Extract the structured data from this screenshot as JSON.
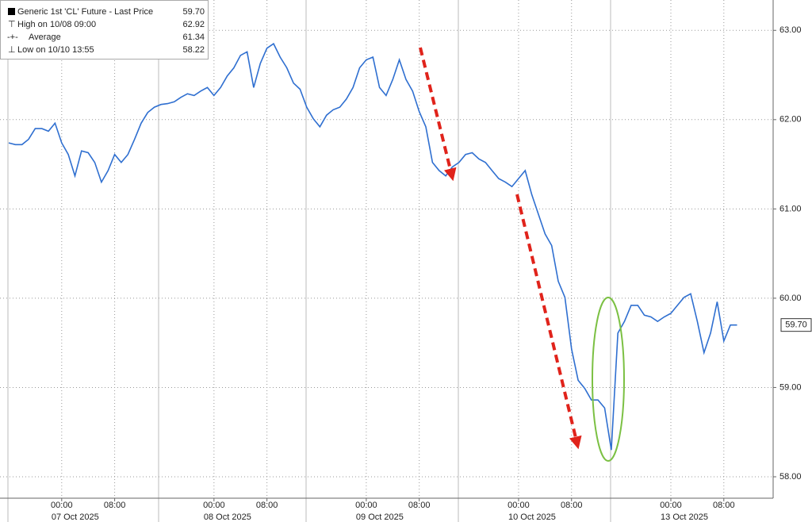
{
  "chart_data": {
    "type": "line",
    "categories": [
      "2025-10-06 15:00",
      "2025-10-06 16:00",
      "2025-10-06 18:00",
      "2025-10-06 19:00",
      "2025-10-06 20:00",
      "2025-10-06 21:00",
      "2025-10-06 22:00",
      "2025-10-06 23:00",
      "2025-10-07 00:00",
      "2025-10-07 01:00",
      "2025-10-07 02:00",
      "2025-10-07 03:00",
      "2025-10-07 04:00",
      "2025-10-07 05:00",
      "2025-10-07 06:00",
      "2025-10-07 07:00",
      "2025-10-07 08:00",
      "2025-10-07 09:00",
      "2025-10-07 10:00",
      "2025-10-07 11:00",
      "2025-10-07 12:00",
      "2025-10-07 13:00",
      "2025-10-07 14:00",
      "2025-10-07 15:00",
      "2025-10-07 16:00",
      "2025-10-07 18:00",
      "2025-10-07 19:00",
      "2025-10-07 20:00",
      "2025-10-07 21:00",
      "2025-10-07 22:00",
      "2025-10-07 23:00",
      "2025-10-08 00:00",
      "2025-10-08 01:00",
      "2025-10-08 02:00",
      "2025-10-08 03:00",
      "2025-10-08 04:00",
      "2025-10-08 05:00",
      "2025-10-08 06:00",
      "2025-10-08 07:00",
      "2025-10-08 08:00",
      "2025-10-08 09:00",
      "2025-10-08 10:00",
      "2025-10-08 11:00",
      "2025-10-08 12:00",
      "2025-10-08 13:00",
      "2025-10-08 14:00",
      "2025-10-08 15:00",
      "2025-10-08 16:00",
      "2025-10-08 18:00",
      "2025-10-08 19:00",
      "2025-10-08 20:00",
      "2025-10-08 21:00",
      "2025-10-08 22:00",
      "2025-10-08 23:00",
      "2025-10-09 00:00",
      "2025-10-09 01:00",
      "2025-10-09 02:00",
      "2025-10-09 03:00",
      "2025-10-09 04:00",
      "2025-10-09 05:00",
      "2025-10-09 06:00",
      "2025-10-09 07:00",
      "2025-10-09 08:00",
      "2025-10-09 09:00",
      "2025-10-09 10:00",
      "2025-10-09 11:00",
      "2025-10-09 12:00",
      "2025-10-09 13:00",
      "2025-10-09 14:00",
      "2025-10-09 15:00",
      "2025-10-09 16:00",
      "2025-10-09 18:00",
      "2025-10-09 19:00",
      "2025-10-09 20:00",
      "2025-10-09 21:00",
      "2025-10-09 22:00",
      "2025-10-09 23:00",
      "2025-10-10 00:00",
      "2025-10-10 01:00",
      "2025-10-10 02:00",
      "2025-10-10 03:00",
      "2025-10-10 04:00",
      "2025-10-10 05:00",
      "2025-10-10 06:00",
      "2025-10-10 07:00",
      "2025-10-10 08:00",
      "2025-10-10 09:00",
      "2025-10-10 10:00",
      "2025-10-10 11:00",
      "2025-10-10 12:00",
      "2025-10-10 13:00",
      "2025-10-10 14:00",
      "2025-10-10 15:00",
      "2025-10-10 16:00",
      "2025-10-12 18:00",
      "2025-10-12 19:00",
      "2025-10-12 20:00",
      "2025-10-12 21:00",
      "2025-10-12 22:00",
      "2025-10-12 23:00",
      "2025-10-13 00:00",
      "2025-10-13 01:00",
      "2025-10-13 02:00",
      "2025-10-13 03:00",
      "2025-10-13 04:00",
      "2025-10-13 05:00",
      "2025-10-13 06:00",
      "2025-10-13 07:00",
      "2025-10-13 08:00",
      "2025-10-13 09:00",
      "2025-10-13 10:00"
    ],
    "series": [
      {
        "name": "Generic 1st 'CL' Future - Last Price",
        "color": "#2f6fd0",
        "values": [
          61.74,
          61.72,
          61.72,
          61.78,
          61.9,
          61.9,
          61.87,
          61.96,
          61.74,
          61.61,
          61.37,
          61.65,
          61.63,
          61.52,
          61.3,
          61.43,
          61.61,
          61.52,
          61.61,
          61.78,
          61.96,
          62.08,
          62.14,
          62.17,
          62.18,
          62.2,
          62.25,
          62.29,
          62.27,
          62.32,
          62.36,
          62.27,
          62.36,
          62.49,
          62.58,
          62.72,
          62.76,
          62.36,
          62.63,
          62.8,
          62.85,
          62.7,
          62.58,
          62.41,
          62.34,
          62.14,
          62.01,
          61.92,
          62.05,
          62.11,
          62.14,
          62.23,
          62.36,
          62.58,
          62.67,
          62.7,
          62.36,
          62.27,
          62.45,
          62.67,
          62.45,
          62.32,
          62.09,
          61.92,
          61.52,
          61.43,
          61.37,
          61.47,
          61.52,
          61.61,
          61.63,
          61.56,
          61.52,
          61.43,
          61.34,
          61.3,
          61.25,
          61.34,
          61.43,
          61.16,
          60.94,
          60.72,
          60.59,
          60.19,
          60.01,
          59.43,
          59.08,
          58.99,
          58.86,
          58.86,
          58.77,
          58.3,
          59.61,
          59.74,
          59.92,
          59.92,
          59.81,
          59.79,
          59.74,
          59.79,
          59.83,
          59.92,
          60.01,
          60.05,
          59.74,
          59.39,
          59.61,
          59.96,
          59.52,
          59.7,
          59.7
        ],
        "last": {
          "value": 59.7,
          "label": "59.70"
        }
      }
    ],
    "legend_stats": [
      {
        "label": "High on 10/08 09:00",
        "value": "62.92"
      },
      {
        "label": "Average",
        "value": "61.34"
      },
      {
        "label": "Low on 10/10 13:55",
        "value": "58.22"
      }
    ],
    "ylim": [
      57.76,
      63.34
    ],
    "yticks": [
      {
        "value": 58,
        "label": "58.00"
      },
      {
        "value": 59,
        "label": "59.00"
      },
      {
        "value": 60,
        "label": "60.00"
      },
      {
        "value": 61,
        "label": "61.00"
      },
      {
        "value": 62,
        "label": "62.00"
      },
      {
        "value": 63,
        "label": "63.00"
      }
    ],
    "xticks": [
      {
        "value": "2025-10-07 00:00",
        "label": "00:00"
      },
      {
        "value": "2025-10-07 08:00",
        "label": "08:00"
      },
      {
        "value": "2025-10-08 00:00",
        "label": "00:00"
      },
      {
        "value": "2025-10-08 08:00",
        "label": "08:00"
      },
      {
        "value": "2025-10-09 00:00",
        "label": "00:00"
      },
      {
        "value": "2025-10-09 08:00",
        "label": "08:00"
      },
      {
        "value": "2025-10-10 00:00",
        "label": "00:00"
      },
      {
        "value": "2025-10-10 08:00",
        "label": "08:00"
      },
      {
        "value": "2025-10-13 00:00",
        "label": "00:00"
      },
      {
        "value": "2025-10-13 08:00",
        "label": "08:00"
      }
    ],
    "date_labels": [
      {
        "value": "2025-10-07 00:00",
        "label": "07 Oct 2025"
      },
      {
        "value": "2025-10-08 00:00",
        "label": "08 Oct 2025"
      },
      {
        "value": "2025-10-09 00:00",
        "label": "09 Oct 2025"
      },
      {
        "value": "2025-10-10 00:00",
        "label": "10 Oct 2025"
      },
      {
        "value": "2025-10-13 00:00",
        "label": "13 Oct 2025"
      }
    ],
    "grid": true
  }
}
